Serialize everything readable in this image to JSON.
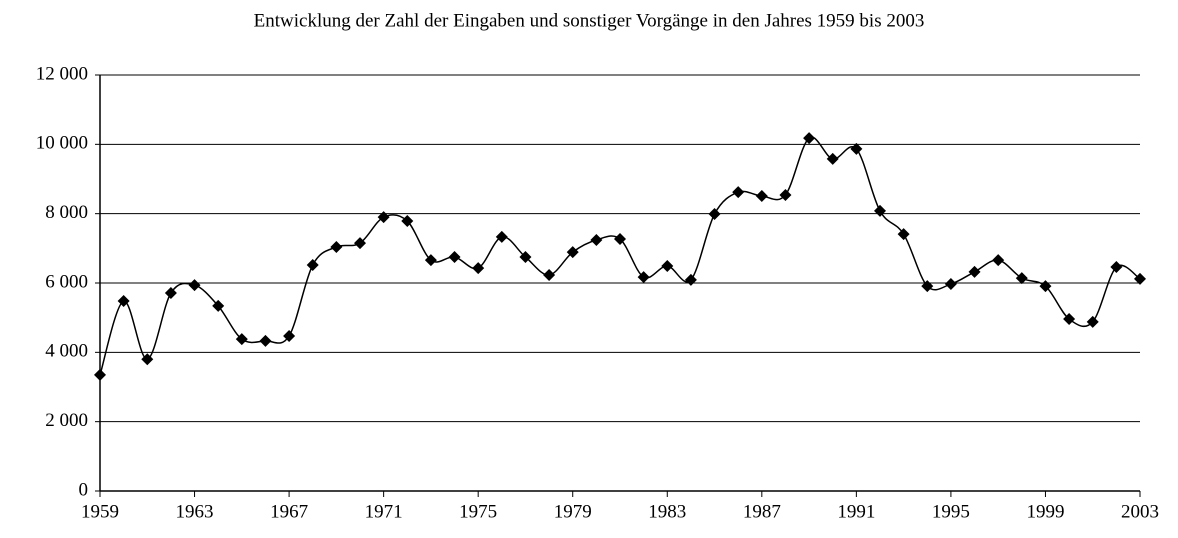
{
  "chart_data": {
    "type": "line",
    "title": "Entwicklung der Zahl der Eingaben und sonstiger Vorgänge in den Jahres 1959 bis 2003",
    "x": [
      1959,
      1960,
      1961,
      1962,
      1963,
      1964,
      1965,
      1966,
      1967,
      1968,
      1969,
      1970,
      1971,
      1972,
      1973,
      1974,
      1975,
      1976,
      1977,
      1978,
      1979,
      1980,
      1981,
      1982,
      1983,
      1984,
      1985,
      1986,
      1987,
      1988,
      1989,
      1990,
      1991,
      1992,
      1993,
      1994,
      1995,
      1996,
      1997,
      1998,
      1999,
      2000,
      2001,
      2002,
      2003
    ],
    "series": [
      {
        "name": "Eingaben",
        "color": "#000000",
        "values": [
          3350,
          5480,
          3800,
          5710,
          5940,
          5340,
          4380,
          4330,
          4470,
          6520,
          7040,
          7150,
          7900,
          7790,
          6660,
          6750,
          6430,
          7330,
          6750,
          6230,
          6890,
          7240,
          7270,
          6170,
          6490,
          6090,
          7990,
          8620,
          8510,
          8540,
          10180,
          9580,
          9870,
          8080,
          7410,
          5910,
          5970,
          6320,
          6660,
          6140,
          5910,
          4960,
          4880,
          6460,
          6120
        ]
      }
    ],
    "xlim": [
      1959,
      2003
    ],
    "xticks": [
      1959,
      1963,
      1967,
      1971,
      1975,
      1979,
      1983,
      1987,
      1991,
      1995,
      1999,
      2003
    ],
    "ylim": [
      0,
      12000
    ],
    "yticks": [
      0,
      {
        "value": 2000,
        "label": "2 000"
      },
      {
        "value": 4000,
        "label": "4 000"
      },
      {
        "value": 6000,
        "label": "6 000"
      },
      {
        "value": 8000,
        "label": "8 000"
      },
      {
        "value": 10000,
        "label": "10 000"
      },
      {
        "value": 12000,
        "label": "12 000"
      }
    ],
    "grid": true
  }
}
